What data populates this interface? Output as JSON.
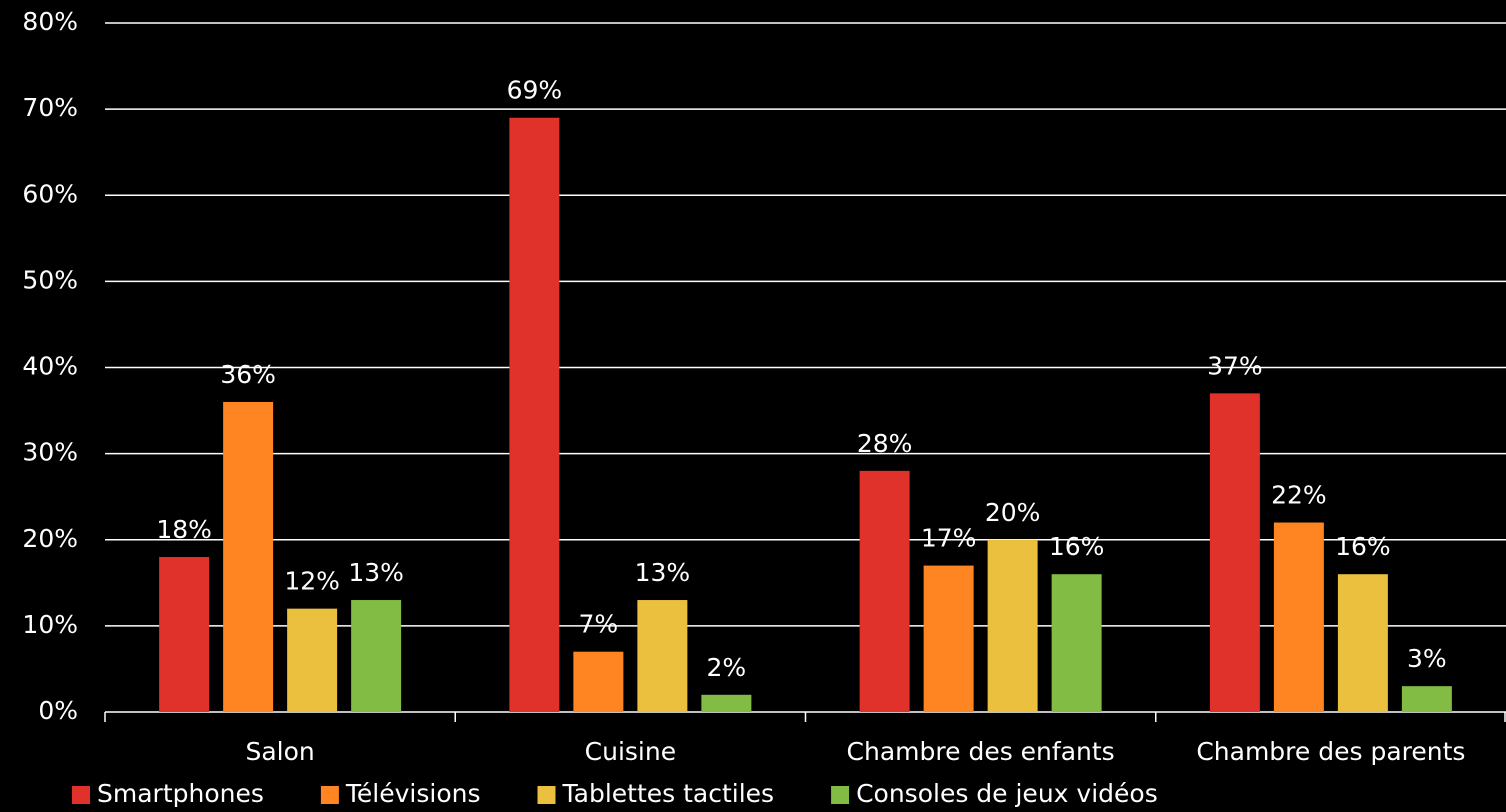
{
  "chart_data": {
    "type": "bar",
    "categories": [
      "Salon",
      "Cuisine",
      "Chambre des enfants",
      "Chambre des parents"
    ],
    "series": [
      {
        "name": "Smartphones",
        "color": "#e0312a",
        "values": [
          18,
          69,
          28,
          37
        ],
        "value_labels": [
          "18%",
          "69%",
          "28%",
          "37%"
        ]
      },
      {
        "name": "Télévisions",
        "color": "#ff8522",
        "values": [
          36,
          7,
          17,
          22
        ],
        "value_labels": [
          "36%",
          "7%",
          "17%",
          "22%"
        ]
      },
      {
        "name": "Tablettes tactiles",
        "color": "#ebc03f",
        "values": [
          12,
          13,
          20,
          16
        ],
        "value_labels": [
          "12%",
          "13%",
          "20%",
          "16%"
        ]
      },
      {
        "name": "Consoles de jeux vidéos",
        "color": "#82bc45",
        "values": [
          13,
          2,
          16,
          3
        ],
        "value_labels": [
          "13%",
          "2%",
          "16%",
          "3%"
        ]
      }
    ],
    "ylim": [
      0,
      80
    ],
    "yticks": [
      {
        "value": 0,
        "label": "0%"
      },
      {
        "value": 10,
        "label": "10%"
      },
      {
        "value": 20,
        "label": "20%"
      },
      {
        "value": 30,
        "label": "30%"
      },
      {
        "value": 40,
        "label": "40%"
      },
      {
        "value": 50,
        "label": "50%"
      },
      {
        "value": 60,
        "label": "60%"
      },
      {
        "value": 70,
        "label": "70%"
      },
      {
        "value": 80,
        "label": "80%"
      }
    ],
    "grid": true,
    "legend": "bottom"
  }
}
